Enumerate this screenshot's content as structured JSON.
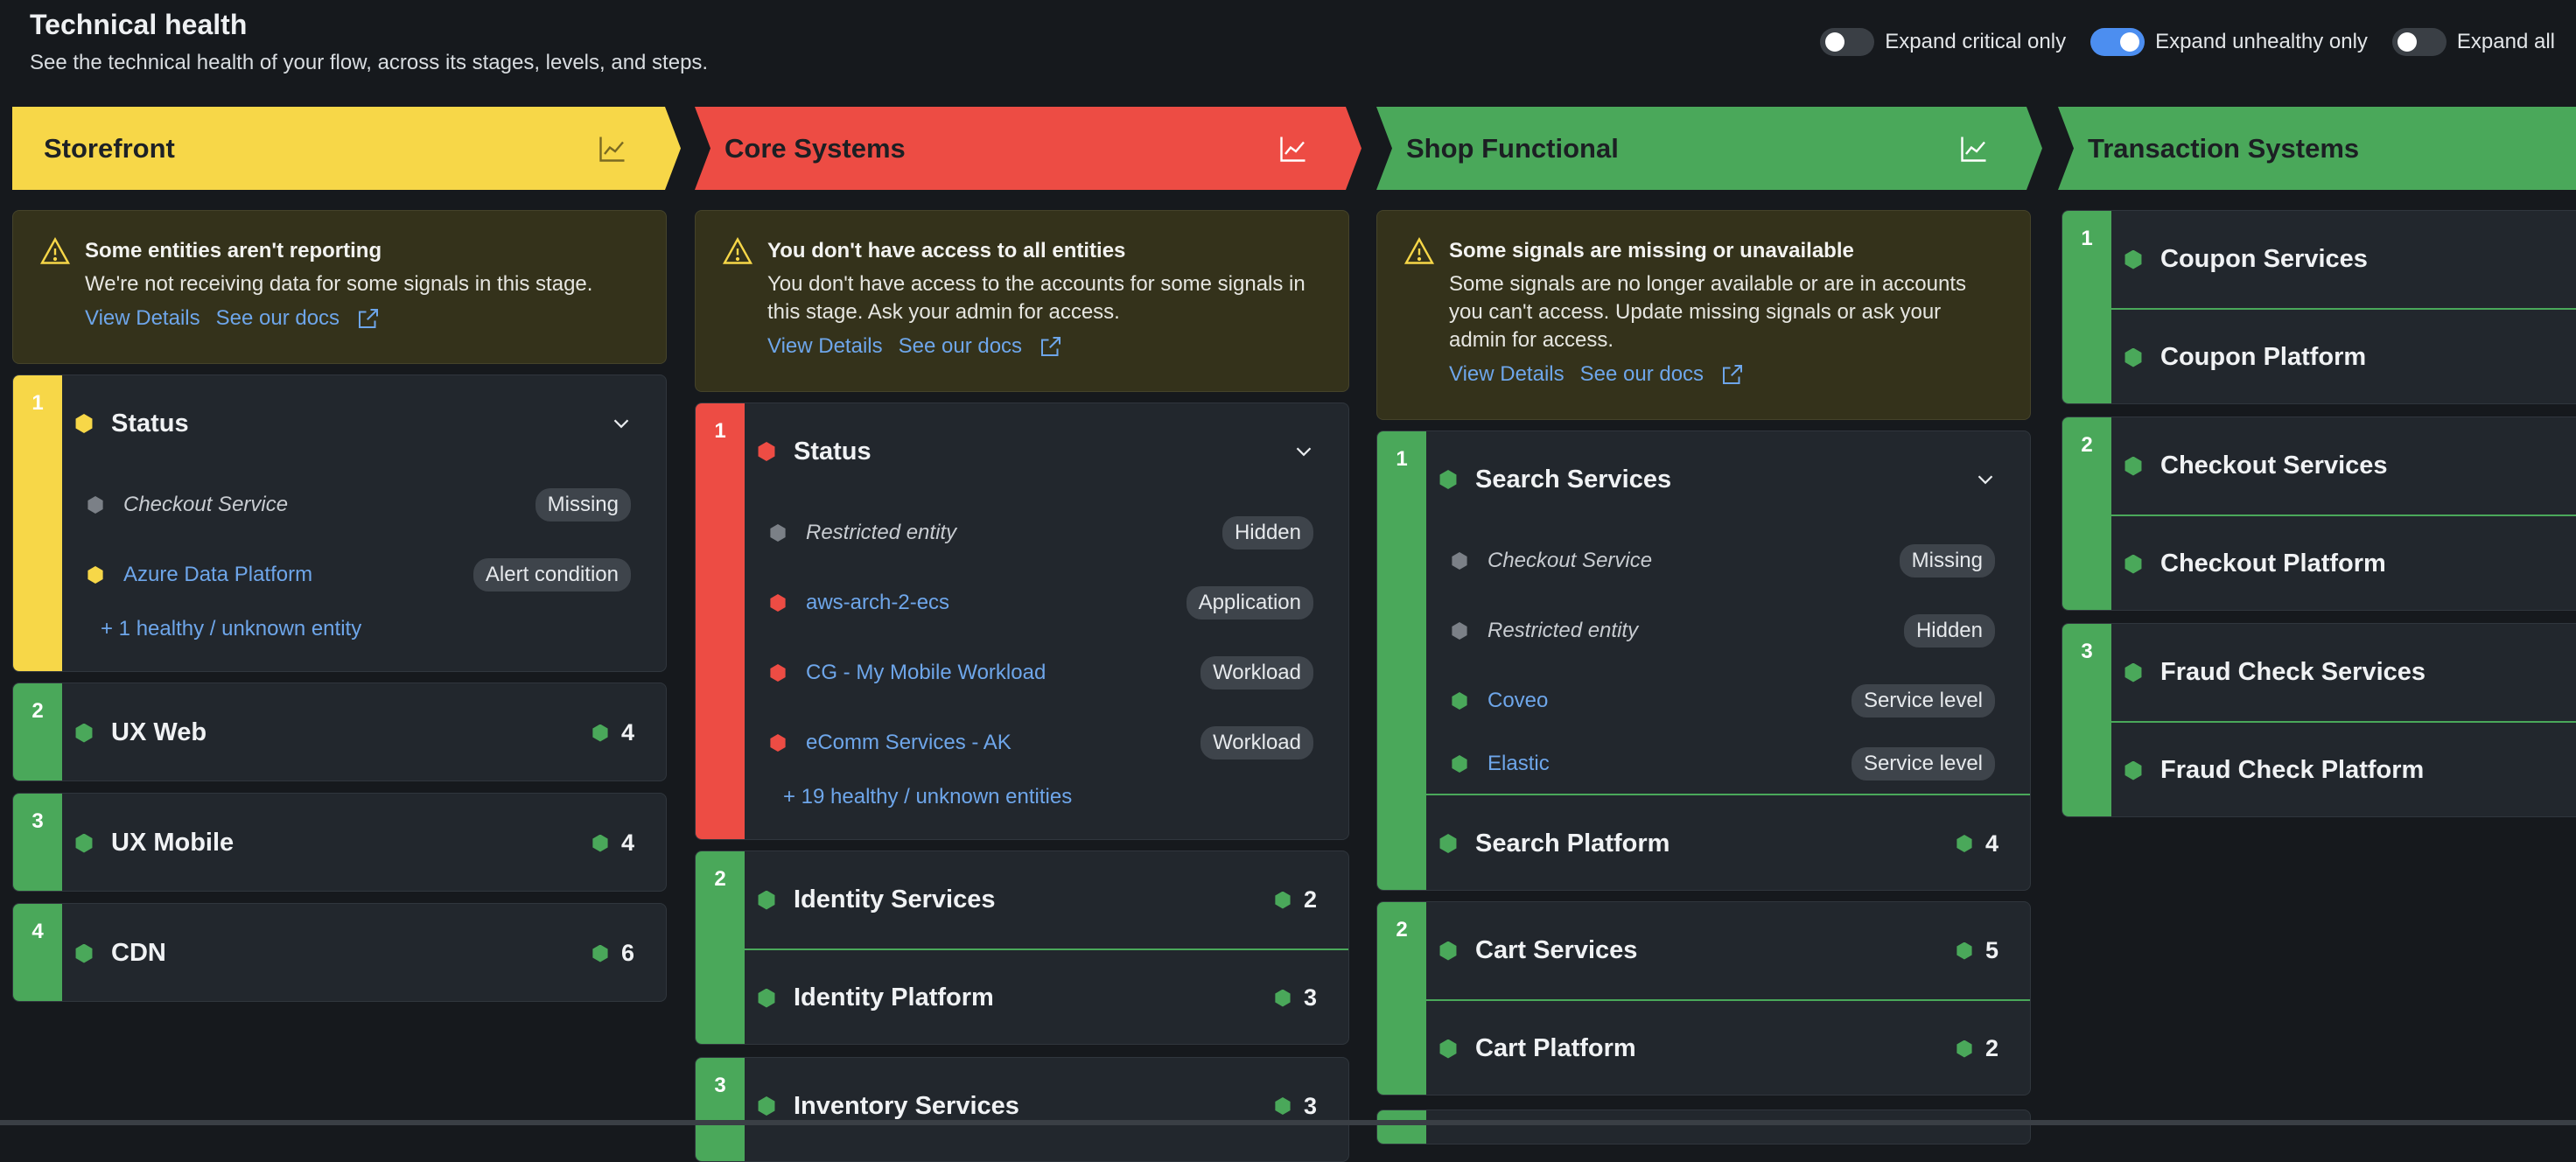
{
  "header": {
    "title": "Technical health",
    "subtitle": "See the technical health of your flow, across its stages, levels, and steps."
  },
  "toggles": [
    {
      "label": "Expand critical only",
      "on": false
    },
    {
      "label": "Expand unhealthy only",
      "on": true
    },
    {
      "label": "Expand all",
      "on": false
    }
  ],
  "stages": [
    {
      "name": "Storefront",
      "color": "yellow",
      "icon": "line-chart-icon",
      "warning": {
        "title": "Some entities aren't reporting",
        "text": "We're not receiving data for some signals in this stage.",
        "view_details": "View Details",
        "docs": "See our docs"
      },
      "levels": [
        {
          "num": "1",
          "steps": [
            {
              "name": "Status"
            }
          ],
          "entities": [
            {
              "name": "Checkout Service",
              "badge": "Missing"
            },
            {
              "name": "Azure Data Platform",
              "badge": "Alert condition"
            }
          ],
          "more": "+ 1 healthy / unknown entity"
        },
        {
          "num": "2",
          "steps": [
            {
              "name": "UX Web",
              "count": "4"
            }
          ]
        },
        {
          "num": "3",
          "steps": [
            {
              "name": "UX Mobile",
              "count": "4"
            }
          ]
        },
        {
          "num": "4",
          "steps": [
            {
              "name": "CDN",
              "count": "6"
            }
          ]
        }
      ]
    },
    {
      "name": "Core Systems",
      "color": "red",
      "icon": "line-chart-icon",
      "warning": {
        "title": "You don't have access to all entities",
        "text1": "You don't have access to the accounts for some signals in",
        "text2": "this stage. Ask your admin for access.",
        "view_details": "View Details",
        "docs": "See our docs"
      },
      "levels": [
        {
          "num": "1",
          "steps": [
            {
              "name": "Status"
            }
          ],
          "entities": [
            {
              "name": "Restricted entity",
              "badge": "Hidden"
            },
            {
              "name": "aws-arch-2-ecs",
              "badge": "Application"
            },
            {
              "name": "CG - My Mobile Workload",
              "badge": "Workload"
            },
            {
              "name": "eComm Services - AK",
              "badge": "Workload"
            }
          ],
          "more": "+ 19 healthy / unknown entities"
        },
        {
          "num": "2",
          "steps": [
            {
              "name": "Identity Services",
              "count": "2"
            },
            {
              "name": "Identity Platform",
              "count": "3"
            }
          ]
        },
        {
          "num": "3",
          "steps": [
            {
              "name": "Inventory Services",
              "count": "3"
            }
          ]
        }
      ]
    },
    {
      "name": "Shop Functional",
      "color": "green",
      "icon": "line-chart-icon",
      "warning": {
        "title": "Some signals are missing or unavailable",
        "text1": "Some signals are no longer available or are in accounts",
        "text2": "you can't access. Update missing signals or ask your",
        "text3": "admin for access.",
        "view_details": "View Details",
        "docs": "See our docs"
      },
      "levels": [
        {
          "num": "1",
          "steps": [
            {
              "name": "Search Services"
            },
            {
              "name": "Search Platform",
              "count": "4"
            }
          ],
          "entities": [
            {
              "name": "Checkout Service",
              "badge": "Missing"
            },
            {
              "name": "Restricted entity",
              "badge": "Hidden"
            },
            {
              "name": "Coveo",
              "badge": "Service level"
            },
            {
              "name": "Elastic",
              "badge": "Service level"
            }
          ]
        },
        {
          "num": "2",
          "steps": [
            {
              "name": "Cart Services",
              "count": "5"
            },
            {
              "name": "Cart Platform",
              "count": "2"
            }
          ]
        }
      ]
    },
    {
      "name": "Transaction Systems",
      "color": "green",
      "levels": [
        {
          "num": "1",
          "steps": [
            {
              "name": "Coupon Services"
            },
            {
              "name": "Coupon Platform"
            }
          ]
        },
        {
          "num": "2",
          "steps": [
            {
              "name": "Checkout Services"
            },
            {
              "name": "Checkout Platform"
            }
          ]
        },
        {
          "num": "3",
          "steps": [
            {
              "name": "Fraud Check Services"
            },
            {
              "name": "Fraud Check Platform"
            }
          ]
        }
      ]
    }
  ]
}
